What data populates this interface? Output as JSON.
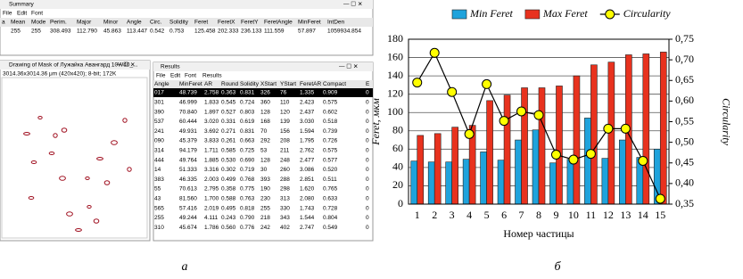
{
  "chart_data": {
    "type": "bar",
    "categories": [
      "1",
      "2",
      "3",
      "4",
      "5",
      "6",
      "7",
      "8",
      "9",
      "10",
      "11",
      "12",
      "13",
      "14",
      "15"
    ],
    "series": [
      {
        "name": "Min Feret",
        "color": "#1fa3dc",
        "values": [
          47,
          46,
          46,
          49,
          57,
          48,
          70,
          81,
          45,
          49,
          94,
          50,
          70,
          51,
          60
        ]
      },
      {
        "name": "Max Feret",
        "color": "#e8321e",
        "values": [
          75,
          77,
          84,
          86,
          113,
          119,
          127,
          127,
          129,
          140,
          152,
          155,
          163,
          164,
          166
        ]
      },
      {
        "name": "Circularity",
        "color": "#ffff00",
        "type": "line",
        "axis": "y2",
        "values": [
          0.645,
          0.717,
          0.622,
          0.52,
          0.641,
          0.552,
          0.575,
          0.566,
          0.47,
          0.458,
          0.472,
          0.533,
          0.533,
          0.455,
          0.363
        ]
      }
    ],
    "ylabel": "Feret, мкм",
    "y2label": "Circularity",
    "xlabel": "Номер частицы",
    "ylim": [
      0,
      180
    ],
    "yticks": [
      0,
      20,
      40,
      60,
      80,
      100,
      120,
      140,
      160,
      180
    ],
    "y2lim": [
      0.35,
      0.75
    ],
    "y2ticks": [
      {
        "value": 0.35,
        "label": "0,35"
      },
      {
        "value": 0.4,
        "label": "0,40"
      },
      {
        "value": 0.45,
        "label": "0,45"
      },
      {
        "value": 0.5,
        "label": "0,50"
      },
      {
        "value": 0.55,
        "label": "0,55"
      },
      {
        "value": 0.6,
        "label": "0,60"
      },
      {
        "value": 0.65,
        "label": "0,65"
      },
      {
        "value": 0.7,
        "label": "0,70"
      },
      {
        "value": 0.75,
        "label": "0,75"
      }
    ],
    "grid": true,
    "legend": "top"
  },
  "captions": [
    "а",
    "б"
  ],
  "screenshot": {
    "summary": {
      "title": "Summary",
      "menu": [
        "File",
        "Edit",
        "Font"
      ],
      "headers": [
        "a",
        "Mean",
        "Mode",
        "Perim.",
        "Major",
        "Minor",
        "Angle",
        "Circ.",
        "Solidity",
        "Feret",
        "FeretX",
        "FeretY",
        "FeretAngle",
        "MinFeret",
        "IntDen"
      ],
      "row": [
        "255",
        "255",
        "308.493",
        "112.790",
        "45.863",
        "113.447",
        "0.542",
        "0.753",
        "125.458",
        "202.333",
        "236.133",
        "111.559",
        "57.897",
        "1059934.854"
      ]
    },
    "drawing": {
      "title": "Drawing of Mask of Лужайка Авангард 10W40_...",
      "info": "3014.36x3014.36 μm (420x420); 8-bit; 172K"
    },
    "results": {
      "title": "Results",
      "menu": [
        "File",
        "Edit",
        "Font",
        "Results"
      ],
      "headers": [
        "Angle",
        "MinFeret",
        "AR",
        "Round",
        "Solidity",
        "XStart",
        "YStart",
        "FeretAR",
        "Compact",
        "E"
      ],
      "rows": [
        [
          "017",
          "48.739",
          "2.758",
          "0.363",
          "0.831",
          "326",
          "76",
          "1.335",
          "0.909",
          "0"
        ],
        [
          "301",
          "46.999",
          "1.833",
          "0.545",
          "0.724",
          "360",
          "110",
          "2.423",
          "0.575",
          "0"
        ],
        [
          "390",
          "70.840",
          "1.897",
          "0.527",
          "0.803",
          "128",
          "120",
          "2.437",
          "0.602",
          "0"
        ],
        [
          "537",
          "60.444",
          "3.020",
          "0.331",
          "0.619",
          "168",
          "139",
          "3.030",
          "0.518",
          "0"
        ],
        [
          "241",
          "49.931",
          "3.692",
          "0.271",
          "0.831",
          "70",
          "156",
          "1.594",
          "0.739",
          "0"
        ],
        [
          "090",
          "45.379",
          "3.833",
          "0.261",
          "0.663",
          "292",
          "208",
          "1.795",
          "0.726",
          "0"
        ],
        [
          "314",
          "94.179",
          "1.711",
          "0.585",
          "0.725",
          "53",
          "211",
          "2.762",
          "0.575",
          "0"
        ],
        [
          "444",
          "49.764",
          "1.885",
          "0.530",
          "0.690",
          "128",
          "248",
          "2.477",
          "0.577",
          "0"
        ],
        [
          "14",
          "51.333",
          "3.316",
          "0.302",
          "0.719",
          "30",
          "260",
          "3.086",
          "0.520",
          "0"
        ],
        [
          "383",
          "46.335",
          "2.003",
          "0.499",
          "0.768",
          "393",
          "288",
          "2.851",
          "0.511",
          "0"
        ],
        [
          "55",
          "70.613",
          "2.795",
          "0.358",
          "0.775",
          "190",
          "298",
          "1.620",
          "0.765",
          "0"
        ],
        [
          "43",
          "81.560",
          "1.700",
          "0.588",
          "0.763",
          "230",
          "313",
          "2.080",
          "0.633",
          "0"
        ],
        [
          "565",
          "57.416",
          "2.019",
          "0.495",
          "0.818",
          "255",
          "330",
          "1.743",
          "0.728",
          "0"
        ],
        [
          "255",
          "49.244",
          "4.111",
          "0.243",
          "0.790",
          "218",
          "343",
          "1.544",
          "0.804",
          "0"
        ],
        [
          "310",
          "45.674",
          "1.786",
          "0.560",
          "0.776",
          "242",
          "402",
          "2.747",
          "0.549",
          "0"
        ]
      ]
    }
  }
}
